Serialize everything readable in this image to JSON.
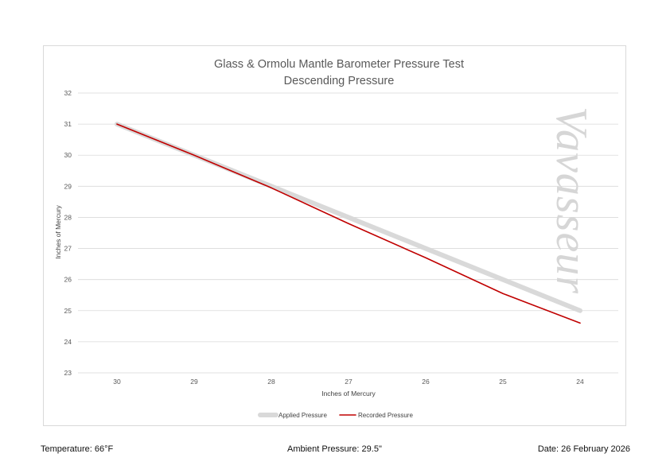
{
  "chart_data": {
    "type": "line",
    "title": "Glass & Ormolu Mantle Barometer Pressure Test",
    "subtitle": "Descending Pressure",
    "xlabel": "Inches of Mercury",
    "ylabel": "Inches of Mercury",
    "x": [
      30,
      29,
      28,
      27,
      26,
      25,
      24
    ],
    "x_tick_labels": [
      "30",
      "29",
      "28",
      "27",
      "26",
      "25",
      "24"
    ],
    "y_ticks": [
      23,
      24,
      25,
      26,
      27,
      28,
      29,
      30,
      31,
      32
    ],
    "ylim": [
      23,
      32
    ],
    "grid": true,
    "legend_position": "bottom",
    "series": [
      {
        "name": "Applied Pressure",
        "values": [
          31,
          30,
          29,
          28,
          27,
          26,
          25
        ],
        "color": "#d9d9d9"
      },
      {
        "name": "Recorded Pressure",
        "values": [
          31,
          30,
          28.95,
          27.8,
          26.7,
          25.55,
          24.6
        ],
        "color": "#c00000"
      }
    ],
    "watermark": "Vavasseur"
  },
  "footer": {
    "temperature": "Temperature: 66°F",
    "ambient_pressure": "Ambient Pressure: 29.5\"",
    "date": "Date: 26 February 2026"
  }
}
